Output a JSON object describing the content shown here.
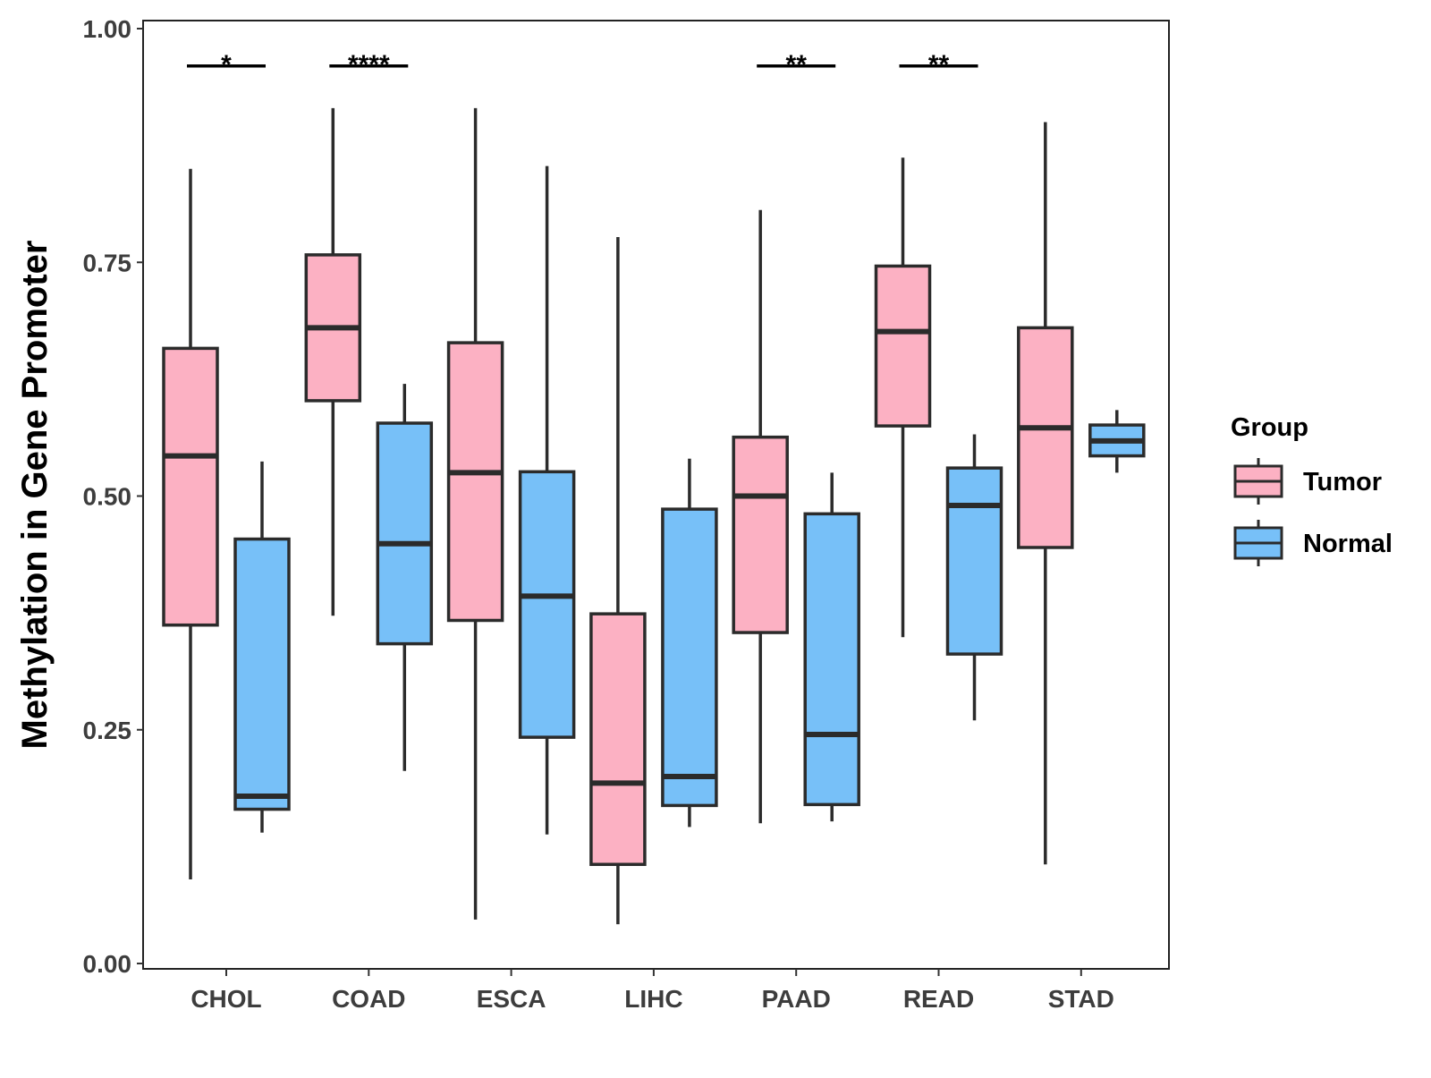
{
  "chart_data": {
    "type": "boxplot",
    "title": "",
    "xlabel": "",
    "ylabel": "Methylation in Gene Promoter",
    "ylim": [
      0.0,
      1.0
    ],
    "yticks": [
      {
        "value": 0.0,
        "label": "0.00"
      },
      {
        "value": 0.25,
        "label": "0.25"
      },
      {
        "value": 0.5,
        "label": "0.50"
      },
      {
        "value": 0.75,
        "label": "0.75"
      },
      {
        "value": 1.0,
        "label": "1.00"
      }
    ],
    "grid": false,
    "legend": {
      "title": "Group",
      "position": "right",
      "entries": [
        {
          "name": "Tumor",
          "color": "#fcb1c3"
        },
        {
          "name": "Normal",
          "color": "#77c0f8"
        }
      ]
    },
    "categories": [
      "CHOL",
      "COAD",
      "ESCA",
      "LIHC",
      "PAAD",
      "READ",
      "STAD"
    ],
    "series": [
      {
        "name": "Tumor",
        "color": "#fcb1c3",
        "boxes": [
          {
            "min": 0.09,
            "q1": 0.362,
            "median": 0.543,
            "q3": 0.658,
            "max": 0.85
          },
          {
            "min": 0.372,
            "q1": 0.602,
            "median": 0.68,
            "q3": 0.758,
            "max": 0.915
          },
          {
            "min": 0.047,
            "q1": 0.367,
            "median": 0.525,
            "q3": 0.664,
            "max": 0.915
          },
          {
            "min": 0.042,
            "q1": 0.106,
            "median": 0.193,
            "q3": 0.374,
            "max": 0.777
          },
          {
            "min": 0.15,
            "q1": 0.354,
            "median": 0.5,
            "q3": 0.563,
            "max": 0.806
          },
          {
            "min": 0.349,
            "q1": 0.575,
            "median": 0.676,
            "q3": 0.746,
            "max": 0.862
          },
          {
            "min": 0.106,
            "q1": 0.445,
            "median": 0.573,
            "q3": 0.68,
            "max": 0.9
          }
        ]
      },
      {
        "name": "Normal",
        "color": "#77c0f8",
        "boxes": [
          {
            "min": 0.14,
            "q1": 0.165,
            "median": 0.179,
            "q3": 0.454,
            "max": 0.537
          },
          {
            "min": 0.206,
            "q1": 0.342,
            "median": 0.449,
            "q3": 0.578,
            "max": 0.62
          },
          {
            "min": 0.138,
            "q1": 0.242,
            "median": 0.393,
            "q3": 0.526,
            "max": 0.853
          },
          {
            "min": 0.146,
            "q1": 0.169,
            "median": 0.2,
            "q3": 0.486,
            "max": 0.54
          },
          {
            "min": 0.152,
            "q1": 0.17,
            "median": 0.245,
            "q3": 0.481,
            "max": 0.525
          },
          {
            "min": 0.26,
            "q1": 0.331,
            "median": 0.49,
            "q3": 0.53,
            "max": 0.566
          },
          {
            "min": 0.525,
            "q1": 0.543,
            "median": 0.559,
            "q3": 0.576,
            "max": 0.592
          }
        ]
      }
    ],
    "annotations": [
      {
        "category": "CHOL",
        "text": "*",
        "y": 0.96
      },
      {
        "category": "COAD",
        "text": "****",
        "y": 0.96
      },
      {
        "category": "PAAD",
        "text": "**",
        "y": 0.96
      },
      {
        "category": "READ",
        "text": "**",
        "y": 0.96
      }
    ]
  }
}
